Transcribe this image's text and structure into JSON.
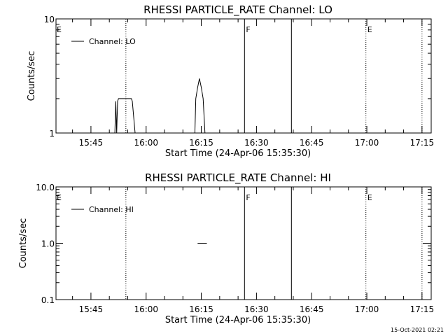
{
  "timestamp": "15-Oct-2021 02:21",
  "chart_data": [
    {
      "type": "line",
      "title": "RHESSI PARTICLE_RATE Channel: LO",
      "xlabel": "Start Time (24-Apr-06 15:35:30)",
      "ylabel": "Counts/sec",
      "yscale": "log",
      "ylim": [
        1,
        10
      ],
      "xlim": [
        "15:35:30",
        "17:17:30"
      ],
      "x_ticks": [
        "15:45",
        "16:00",
        "16:15",
        "16:30",
        "16:45",
        "17:00",
        "17:15"
      ],
      "y_ticks": [
        "1",
        "10"
      ],
      "grid": false,
      "legend_position": "top-left",
      "series": [
        {
          "name": "Channel: LO",
          "points": [
            [
              "15:51:30",
              1
            ],
            [
              "15:51:45",
              1.9
            ],
            [
              "15:52:00",
              1
            ],
            [
              "15:52:15",
              1.9
            ],
            [
              "15:52:30",
              2
            ],
            [
              "15:56:00",
              2
            ],
            [
              "15:56:15",
              1.9
            ],
            [
              "15:57:00",
              1
            ],
            [
              "16:13:15",
              1
            ],
            [
              "16:13:30",
              2
            ],
            [
              "16:14:00",
              2.5
            ],
            [
              "16:14:30",
              3
            ],
            [
              "16:15:00",
              2.5
            ],
            [
              "16:15:30",
              2
            ],
            [
              "16:16:00",
              1
            ]
          ]
        }
      ],
      "markers": [
        {
          "type": "dotted",
          "time": "15:54:30",
          "label": ""
        },
        {
          "type": "solid",
          "time": "16:26:45",
          "label": "F"
        },
        {
          "type": "solid",
          "time": "16:39:30",
          "label": ""
        },
        {
          "type": "dotted",
          "time": "16:59:45",
          "label": "E"
        },
        {
          "type": "dotted",
          "time": "17:15:00",
          "label": ""
        }
      ],
      "corner_label": "E"
    },
    {
      "type": "line",
      "title": "RHESSI PARTICLE_RATE Channel: HI",
      "xlabel": "Start Time (24-Apr-06 15:35:30)",
      "ylabel": "Counts/sec",
      "yscale": "log",
      "ylim": [
        0.1,
        10
      ],
      "xlim": [
        "15:35:30",
        "17:17:30"
      ],
      "x_ticks": [
        "15:45",
        "16:00",
        "16:15",
        "16:30",
        "16:45",
        "17:00",
        "17:15"
      ],
      "y_ticks": [
        "0.1",
        "1.0",
        "10.0"
      ],
      "grid": false,
      "legend_position": "top-left",
      "series": [
        {
          "name": "Channel: HI",
          "points": [
            [
              "16:14:00",
              1
            ],
            [
              "16:16:30",
              1
            ]
          ]
        }
      ],
      "markers": [
        {
          "type": "dotted",
          "time": "15:54:30",
          "label": ""
        },
        {
          "type": "solid",
          "time": "16:26:45",
          "label": "F"
        },
        {
          "type": "solid",
          "time": "16:39:30",
          "label": ""
        },
        {
          "type": "dotted",
          "time": "16:59:45",
          "label": "E"
        },
        {
          "type": "dotted",
          "time": "17:15:00",
          "label": ""
        }
      ],
      "corner_label": "E",
      "right_edge_value": 1
    }
  ]
}
